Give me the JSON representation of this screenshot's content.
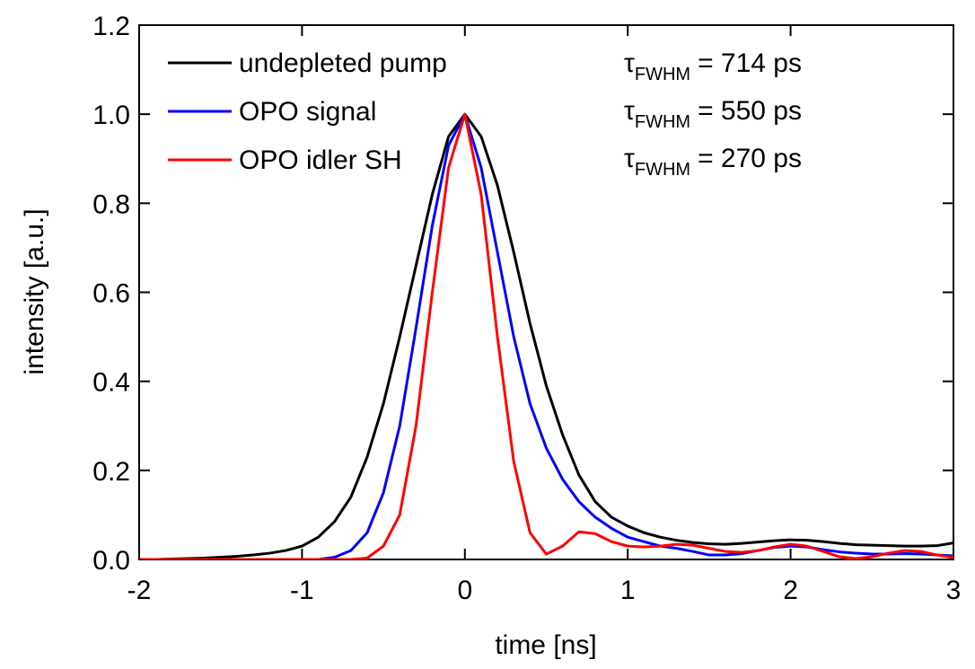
{
  "chart_data": {
    "type": "line",
    "xlabel": "time [ns]",
    "ylabel": "intensity [a.u.]",
    "x": [
      -2,
      -1.9,
      -1.8,
      -1.7,
      -1.6,
      -1.5,
      -1.4,
      -1.3,
      -1.2,
      -1.1,
      -1,
      -0.9,
      -0.8,
      -0.7,
      -0.6,
      -0.5,
      -0.4,
      -0.3,
      -0.2,
      -0.1,
      0,
      0.1,
      0.2,
      0.3,
      0.4,
      0.5,
      0.6,
      0.7,
      0.8,
      0.9,
      1,
      1.1,
      1.2,
      1.3,
      1.4,
      1.5,
      1.6,
      1.7,
      1.8,
      1.9,
      2,
      2.1,
      2.2,
      2.3,
      2.4,
      2.5,
      2.6,
      2.7,
      2.8,
      2.9,
      3
    ],
    "series": [
      {
        "name": "undepleted pump",
        "color": "#000000",
        "values": [
          0,
          0,
          0.001,
          0.002,
          0.003,
          0.005,
          0.007,
          0.01,
          0.014,
          0.02,
          0.03,
          0.05,
          0.085,
          0.14,
          0.23,
          0.35,
          0.5,
          0.66,
          0.82,
          0.95,
          1,
          0.95,
          0.84,
          0.69,
          0.53,
          0.39,
          0.28,
          0.19,
          0.13,
          0.095,
          0.075,
          0.06,
          0.05,
          0.043,
          0.038,
          0.035,
          0.034,
          0.036,
          0.039,
          0.042,
          0.044,
          0.043,
          0.04,
          0.036,
          0.033,
          0.032,
          0.031,
          0.03,
          0.03,
          0.031,
          0.037
        ]
      },
      {
        "name": "OPO signal",
        "color": "#0000ff",
        "values": [
          0,
          0,
          0,
          0,
          0,
          0,
          0,
          0,
          0,
          0,
          0,
          0,
          0.005,
          0.02,
          0.06,
          0.15,
          0.3,
          0.52,
          0.75,
          0.93,
          1,
          0.88,
          0.69,
          0.5,
          0.35,
          0.25,
          0.18,
          0.13,
          0.095,
          0.07,
          0.05,
          0.04,
          0.03,
          0.025,
          0.018,
          0.01,
          0.01,
          0.013,
          0.02,
          0.027,
          0.03,
          0.028,
          0.022,
          0.017,
          0.014,
          0.012,
          0.012,
          0.013,
          0.012,
          0.01,
          0.008
        ]
      },
      {
        "name": "OPO idler SH",
        "color": "#ff0000",
        "values": [
          0,
          0,
          0,
          0,
          0,
          0,
          0,
          0,
          0,
          0,
          0,
          0,
          0,
          0,
          0.003,
          0.03,
          0.1,
          0.3,
          0.6,
          0.88,
          1,
          0.82,
          0.5,
          0.22,
          0.06,
          0.012,
          0.03,
          0.062,
          0.058,
          0.04,
          0.03,
          0.028,
          0.03,
          0.034,
          0.032,
          0.025,
          0.018,
          0.016,
          0.02,
          0.028,
          0.034,
          0.03,
          0.018,
          0.006,
          0.002,
          0.006,
          0.014,
          0.02,
          0.018,
          0.01,
          0.004
        ]
      }
    ],
    "annotations": [
      {
        "symbol": "τ",
        "subscript": "FWHM",
        "text": "= 714 ps"
      },
      {
        "symbol": "τ",
        "subscript": "FWHM",
        "text": "= 550 ps"
      },
      {
        "symbol": "τ",
        "subscript": "FWHM",
        "text": "= 270 ps"
      }
    ],
    "xlim": [
      -2,
      3
    ],
    "xticks": [
      -2,
      -1,
      0,
      1,
      2,
      3
    ],
    "ylim": [
      0,
      1.2
    ],
    "yticks": [
      {
        "value": 0,
        "label": "0.0"
      },
      0.2,
      0.4,
      0.6,
      0.8,
      {
        "value": 1,
        "label": "1.0"
      },
      1.2
    ],
    "legend": "upper left"
  }
}
